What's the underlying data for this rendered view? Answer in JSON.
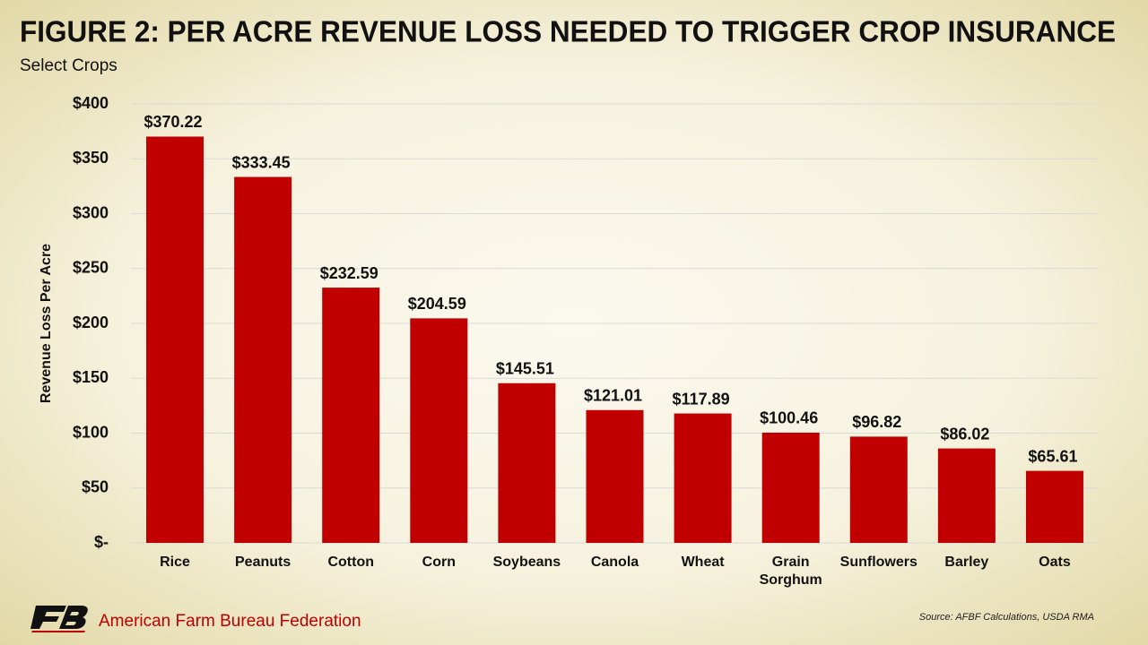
{
  "chart_data": {
    "type": "bar",
    "title": "FIGURE 2: PER ACRE REVENUE LOSS NEEDED TO TRIGGER CROP INSURANCE",
    "subtitle": "Select Crops",
    "y_label": "Revenue Loss Per Acre",
    "source": "Source: AFBF Calculations, USDA RMA",
    "organization": "American Farm Bureau Federation",
    "categories": [
      "Rice",
      "Peanuts",
      "Cotton",
      "Corn",
      "Soybeans",
      "Canola",
      "Wheat",
      "Grain Sorghum",
      "Sunflowers",
      "Barley",
      "Oats"
    ],
    "values": [
      370.22,
      333.45,
      232.59,
      204.59,
      145.51,
      121.01,
      117.89,
      100.46,
      96.82,
      86.02,
      65.61
    ],
    "value_labels": [
      "$370.22",
      "$333.45",
      "$232.59",
      "$204.59",
      "$145.51",
      "$121.01",
      "$117.89",
      "$100.46",
      "$96.82",
      "$86.02",
      "$65.61"
    ],
    "color": "#c00000",
    "ylim": [
      0,
      400
    ],
    "yticks": [
      {
        "value": 0,
        "label": "$-"
      },
      {
        "value": 50,
        "label": "$50"
      },
      {
        "value": 100,
        "label": "$100"
      },
      {
        "value": 150,
        "label": "$150"
      },
      {
        "value": 200,
        "label": "$200"
      },
      {
        "value": 250,
        "label": "$250"
      },
      {
        "value": 300,
        "label": "$300"
      },
      {
        "value": 350,
        "label": "$350"
      },
      {
        "value": 400,
        "label": "$400"
      }
    ],
    "grid": true
  }
}
